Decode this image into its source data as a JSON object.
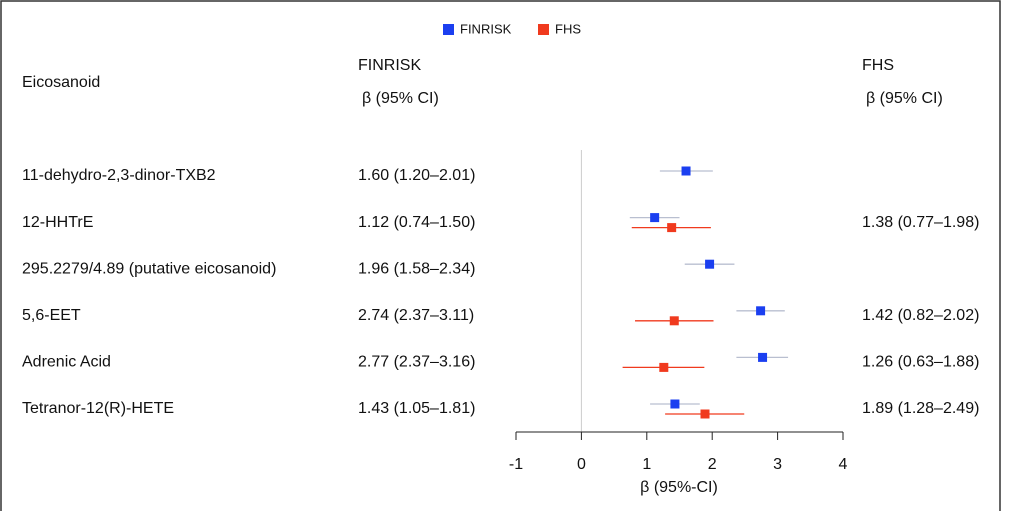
{
  "chart_data": {
    "type": "forest",
    "label_header": "Eicosanoid",
    "ci_header": "β (95% CI)",
    "x_label": "β (95%-CI)",
    "categories": [
      "11-dehydro-2,3-dinor-TXB2",
      "12-HHTrE",
      "295.2279/4.89 (putative eicosanoid)",
      "5,6-EET",
      "Adrenic Acid",
      "Tetranor-12(R)-HETE"
    ],
    "series": [
      {
        "name": "FINRISK",
        "color": "#1b3ff0",
        "values": [
          1.6,
          1.12,
          1.96,
          2.74,
          2.77,
          1.43
        ],
        "lower": [
          1.2,
          0.74,
          1.58,
          2.37,
          2.37,
          1.05
        ],
        "upper": [
          2.01,
          1.5,
          2.34,
          3.11,
          3.16,
          1.81
        ],
        "value_labels": [
          "1.60 (1.20–2.01)",
          "1.12 (0.74–1.50)",
          "1.96 (1.58–2.34)",
          "2.74 (2.37–3.11)",
          "2.77 (2.37–3.16)",
          "1.43 (1.05–1.81)"
        ]
      },
      {
        "name": "FHS",
        "color": "#f03a1e",
        "values": [
          null,
          1.38,
          null,
          1.42,
          1.26,
          1.89
        ],
        "lower": [
          null,
          0.77,
          null,
          0.82,
          0.63,
          1.28
        ],
        "upper": [
          null,
          1.98,
          null,
          2.02,
          1.88,
          2.49
        ],
        "value_labels": [
          null,
          "1.38 (0.77–1.98)",
          null,
          "1.42 (0.82–2.02)",
          "1.26 (0.63–1.88)",
          "1.89 (1.28–2.49)"
        ]
      }
    ],
    "xlim": [
      -1,
      4
    ],
    "xticks": [
      -1,
      0,
      1,
      2,
      3,
      4
    ]
  }
}
